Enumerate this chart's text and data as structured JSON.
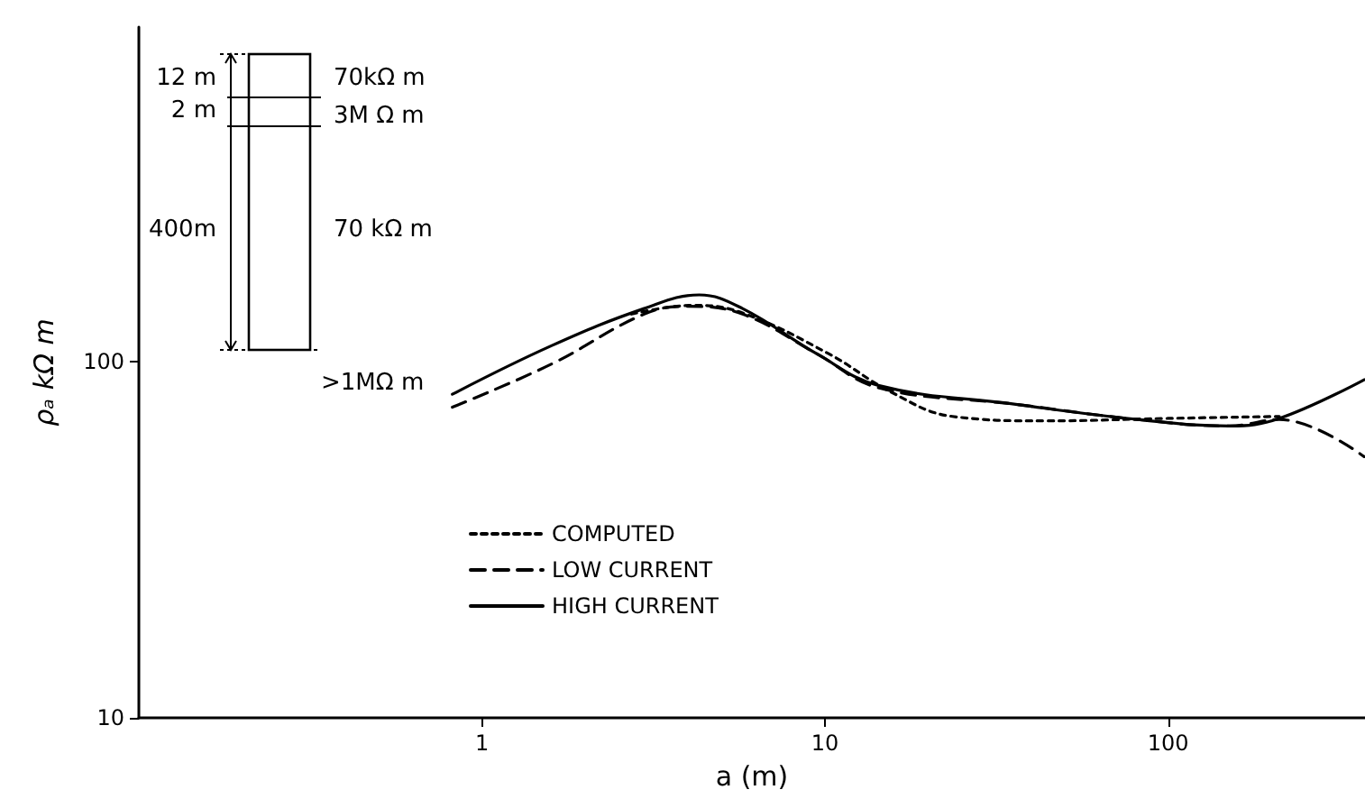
{
  "chart_data": {
    "type": "line",
    "xlabel": "a (m)",
    "ylabel": "ρₐ kΩ m",
    "log": "xy",
    "grid": false,
    "legend": "bottom left",
    "marker": "none",
    "xlim": [
      0.1,
      375
    ],
    "xticks": [
      1,
      10,
      100
    ],
    "ylim": [
      10,
      870
    ],
    "yticks": [
      10,
      100
    ],
    "series": [
      {
        "name": "COMPUTED",
        "color": "#000000",
        "line_style": "dotted",
        "x": [
          2.73,
          4.13,
          5.75,
          10.3,
          15.5,
          23.5,
          43.7,
          100,
          211
        ],
        "values": [
          136,
          144,
          137,
          105,
          82.4,
          70.2,
          68.2,
          69.3,
          70.2
        ]
      },
      {
        "name": "LOW CURRENT",
        "color": "#000000",
        "line_style": "dashed",
        "x": [
          0.82,
          1.6,
          2.97,
          3.97,
          5.75,
          9.5,
          14.3,
          35.6,
          81.5,
          151,
          211,
          373
        ],
        "values": [
          74.5,
          98.6,
          136,
          143,
          136,
          105,
          84.5,
          76,
          68.8,
          66,
          68.8,
          54.1
        ]
      },
      {
        "name": "HIGH CURRENT",
        "color": "#000000",
        "line_style": "solid",
        "x": [
          0.82,
          1.6,
          2.97,
          4.3,
          5.75,
          9.5,
          14.3,
          35.6,
          81.5,
          151,
          211,
          373
        ],
        "values": [
          81,
          111,
          141,
          154,
          141,
          105,
          85.8,
          76,
          68.8,
          66,
          69.3,
          89
        ]
      }
    ],
    "annotations": [
      "12 m",
      "2 m",
      "400m",
      "70kΩ m",
      "3M Ω m",
      "70 kΩ m",
      ">1MΩ m"
    ]
  }
}
